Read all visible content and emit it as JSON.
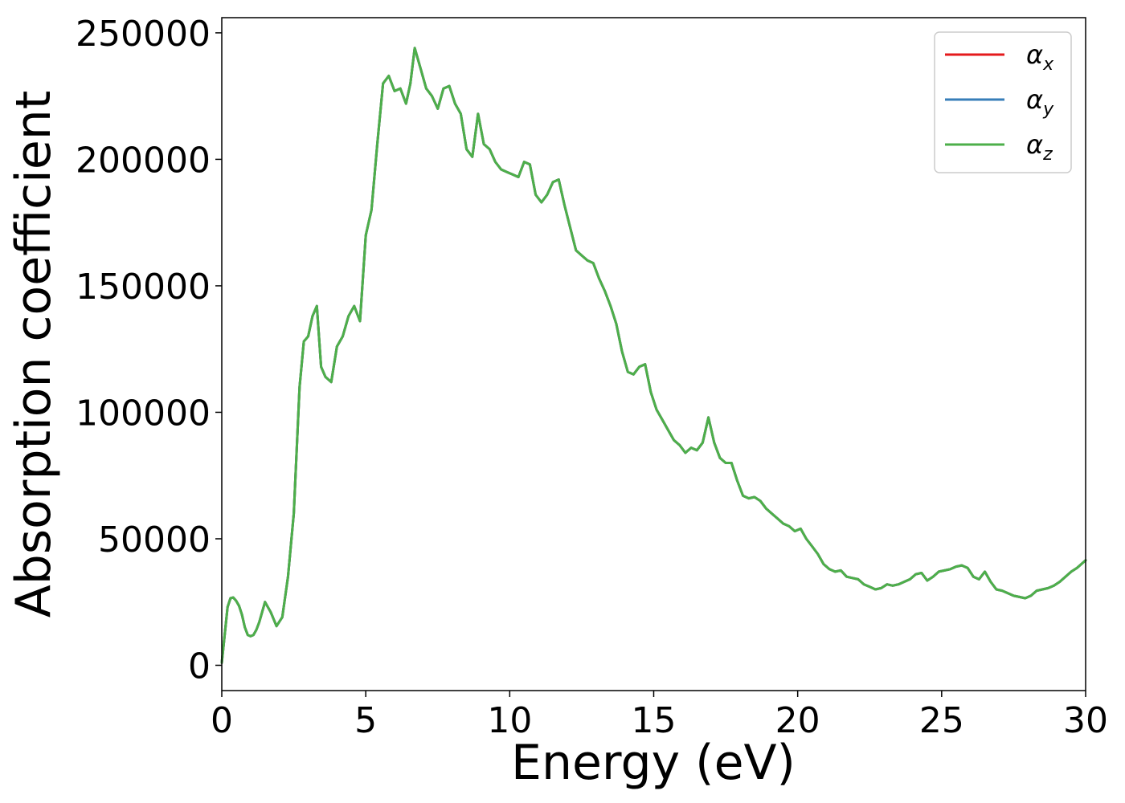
{
  "chart_data": {
    "type": "line",
    "xlabel": "Energy (eV)",
    "ylabel": "Absorption coefficient",
    "xlim": [
      0,
      30
    ],
    "ylim": [
      -10000,
      256000
    ],
    "xticks": [
      0,
      5,
      10,
      15,
      20,
      25,
      30
    ],
    "yticks": [
      0,
      50000,
      100000,
      150000,
      200000,
      250000
    ],
    "grid": false,
    "legend_position": "top-right",
    "series": [
      {
        "name": "αx",
        "symbol": "α",
        "subscript": "x",
        "color": "#e41a1c",
        "x": [
          0,
          0.1,
          0.2,
          0.3,
          0.4,
          0.5,
          0.6,
          0.7,
          0.8,
          0.9,
          1.0,
          1.1,
          1.2,
          1.3,
          1.5,
          1.7,
          1.9,
          2.1,
          2.3,
          2.5,
          2.7,
          2.85,
          3.0,
          3.15,
          3.3,
          3.45,
          3.6,
          3.8,
          4.0,
          4.2,
          4.4,
          4.6,
          4.8,
          5.0,
          5.2,
          5.4,
          5.6,
          5.8,
          6.0,
          6.2,
          6.4,
          6.55,
          6.7,
          6.9,
          7.1,
          7.3,
          7.5,
          7.7,
          7.9,
          8.1,
          8.3,
          8.5,
          8.7,
          8.9,
          9.1,
          9.3,
          9.5,
          9.7,
          9.9,
          10.1,
          10.3,
          10.5,
          10.7,
          10.9,
          11.1,
          11.3,
          11.5,
          11.7,
          11.9,
          12.1,
          12.3,
          12.5,
          12.7,
          12.9,
          13.1,
          13.3,
          13.5,
          13.7,
          13.9,
          14.1,
          14.3,
          14.5,
          14.7,
          14.9,
          15.1,
          15.3,
          15.5,
          15.7,
          15.9,
          16.1,
          16.3,
          16.5,
          16.7,
          16.9,
          17.1,
          17.3,
          17.5,
          17.7,
          17.9,
          18.1,
          18.3,
          18.5,
          18.7,
          18.9,
          19.1,
          19.3,
          19.5,
          19.7,
          19.9,
          20.1,
          20.3,
          20.5,
          20.7,
          20.9,
          21.1,
          21.3,
          21.5,
          21.7,
          21.9,
          22.1,
          22.3,
          22.5,
          22.7,
          22.9,
          23.1,
          23.3,
          23.5,
          23.7,
          23.9,
          24.1,
          24.3,
          24.5,
          24.7,
          24.9,
          25.1,
          25.3,
          25.5,
          25.7,
          25.9,
          26.1,
          26.3,
          26.5,
          26.7,
          26.9,
          27.1,
          27.3,
          27.5,
          27.7,
          27.9,
          28.1,
          28.3,
          28.5,
          28.7,
          28.9,
          29.1,
          29.3,
          29.5,
          29.7,
          30.0
        ],
        "y": [
          1000,
          12000,
          23000,
          26500,
          26800,
          25500,
          23500,
          20000,
          15000,
          12000,
          11500,
          12000,
          14000,
          17000,
          25000,
          21000,
          15500,
          19000,
          35000,
          60000,
          110000,
          128000,
          130000,
          138000,
          142000,
          118000,
          114000,
          112000,
          126000,
          130000,
          138000,
          142000,
          136000,
          170000,
          180000,
          206000,
          230000,
          233000,
          227000,
          228000,
          222000,
          230000,
          244000,
          236000,
          228000,
          225000,
          220000,
          228000,
          229000,
          222000,
          218000,
          204000,
          201000,
          218000,
          206000,
          204000,
          199000,
          196000,
          195000,
          194000,
          193000,
          199000,
          198000,
          186000,
          183000,
          186000,
          191000,
          192000,
          182000,
          173000,
          164000,
          162000,
          160000,
          159000,
          153000,
          148000,
          142000,
          135000,
          124000,
          116000,
          115000,
          118000,
          119000,
          108000,
          101000,
          97000,
          93000,
          89000,
          87000,
          84000,
          86000,
          85000,
          88000,
          98000,
          88000,
          82000,
          80000,
          80000,
          73000,
          67000,
          66000,
          66500,
          65000,
          62000,
          60000,
          58000,
          56000,
          55000,
          53000,
          54000,
          50000,
          47000,
          44000,
          40000,
          38000,
          37000,
          37500,
          35000,
          34500,
          34000,
          32000,
          31000,
          30000,
          30500,
          32000,
          31500,
          32000,
          33000,
          34000,
          36000,
          36500,
          33500,
          35000,
          37000,
          37500,
          38000,
          39000,
          39500,
          38500,
          35000,
          34000,
          37000,
          33000,
          30000,
          29500,
          28500,
          27500,
          27000,
          26500,
          27500,
          29500,
          30000,
          30500,
          31500,
          33000,
          35000,
          37000,
          38500,
          41500
        ]
      },
      {
        "name": "αy",
        "symbol": "α",
        "subscript": "y",
        "color": "#377eb8",
        "x": [
          0,
          0.1,
          0.2,
          0.3,
          0.4,
          0.5,
          0.6,
          0.7,
          0.8,
          0.9,
          1.0,
          1.1,
          1.2,
          1.3,
          1.5,
          1.7,
          1.9,
          2.1,
          2.3,
          2.5,
          2.7,
          2.85,
          3.0,
          3.15,
          3.3,
          3.45,
          3.6,
          3.8,
          4.0,
          4.2,
          4.4,
          4.6,
          4.8,
          5.0,
          5.2,
          5.4,
          5.6,
          5.8,
          6.0,
          6.2,
          6.4,
          6.55,
          6.7,
          6.9,
          7.1,
          7.3,
          7.5,
          7.7,
          7.9,
          8.1,
          8.3,
          8.5,
          8.7,
          8.9,
          9.1,
          9.3,
          9.5,
          9.7,
          9.9,
          10.1,
          10.3,
          10.5,
          10.7,
          10.9,
          11.1,
          11.3,
          11.5,
          11.7,
          11.9,
          12.1,
          12.3,
          12.5,
          12.7,
          12.9,
          13.1,
          13.3,
          13.5,
          13.7,
          13.9,
          14.1,
          14.3,
          14.5,
          14.7,
          14.9,
          15.1,
          15.3,
          15.5,
          15.7,
          15.9,
          16.1,
          16.3,
          16.5,
          16.7,
          16.9,
          17.1,
          17.3,
          17.5,
          17.7,
          17.9,
          18.1,
          18.3,
          18.5,
          18.7,
          18.9,
          19.1,
          19.3,
          19.5,
          19.7,
          19.9,
          20.1,
          20.3,
          20.5,
          20.7,
          20.9,
          21.1,
          21.3,
          21.5,
          21.7,
          21.9,
          22.1,
          22.3,
          22.5,
          22.7,
          22.9,
          23.1,
          23.3,
          23.5,
          23.7,
          23.9,
          24.1,
          24.3,
          24.5,
          24.7,
          24.9,
          25.1,
          25.3,
          25.5,
          25.7,
          25.9,
          26.1,
          26.3,
          26.5,
          26.7,
          26.9,
          27.1,
          27.3,
          27.5,
          27.7,
          27.9,
          28.1,
          28.3,
          28.5,
          28.7,
          28.9,
          29.1,
          29.3,
          29.5,
          29.7,
          30.0
        ],
        "y": [
          1000,
          12000,
          23000,
          26500,
          26800,
          25500,
          23500,
          20000,
          15000,
          12000,
          11500,
          12000,
          14000,
          17000,
          25000,
          21000,
          15500,
          19000,
          35000,
          60000,
          110000,
          128000,
          130000,
          138000,
          142000,
          118000,
          114000,
          112000,
          126000,
          130000,
          138000,
          142000,
          136000,
          170000,
          180000,
          206000,
          230000,
          233000,
          227000,
          228000,
          222000,
          230000,
          244000,
          236000,
          228000,
          225000,
          220000,
          228000,
          229000,
          222000,
          218000,
          204000,
          201000,
          218000,
          206000,
          204000,
          199000,
          196000,
          195000,
          194000,
          193000,
          199000,
          198000,
          186000,
          183000,
          186000,
          191000,
          192000,
          182000,
          173000,
          164000,
          162000,
          160000,
          159000,
          153000,
          148000,
          142000,
          135000,
          124000,
          116000,
          115000,
          118000,
          119000,
          108000,
          101000,
          97000,
          93000,
          89000,
          87000,
          84000,
          86000,
          85000,
          88000,
          98000,
          88000,
          82000,
          80000,
          80000,
          73000,
          67000,
          66000,
          66500,
          65000,
          62000,
          60000,
          58000,
          56000,
          55000,
          53000,
          54000,
          50000,
          47000,
          44000,
          40000,
          38000,
          37000,
          37500,
          35000,
          34500,
          34000,
          32000,
          31000,
          30000,
          30500,
          32000,
          31500,
          32000,
          33000,
          34000,
          36000,
          36500,
          33500,
          35000,
          37000,
          37500,
          38000,
          39000,
          39500,
          38500,
          35000,
          34000,
          37000,
          33000,
          30000,
          29500,
          28500,
          27500,
          27000,
          26500,
          27500,
          29500,
          30000,
          30500,
          31500,
          33000,
          35000,
          37000,
          38500,
          41500
        ]
      },
      {
        "name": "αz",
        "symbol": "α",
        "subscript": "z",
        "color": "#4daf4a",
        "x": [
          0,
          0.1,
          0.2,
          0.3,
          0.4,
          0.5,
          0.6,
          0.7,
          0.8,
          0.9,
          1.0,
          1.1,
          1.2,
          1.3,
          1.5,
          1.7,
          1.9,
          2.1,
          2.3,
          2.5,
          2.7,
          2.85,
          3.0,
          3.15,
          3.3,
          3.45,
          3.6,
          3.8,
          4.0,
          4.2,
          4.4,
          4.6,
          4.8,
          5.0,
          5.2,
          5.4,
          5.6,
          5.8,
          6.0,
          6.2,
          6.4,
          6.55,
          6.7,
          6.9,
          7.1,
          7.3,
          7.5,
          7.7,
          7.9,
          8.1,
          8.3,
          8.5,
          8.7,
          8.9,
          9.1,
          9.3,
          9.5,
          9.7,
          9.9,
          10.1,
          10.3,
          10.5,
          10.7,
          10.9,
          11.1,
          11.3,
          11.5,
          11.7,
          11.9,
          12.1,
          12.3,
          12.5,
          12.7,
          12.9,
          13.1,
          13.3,
          13.5,
          13.7,
          13.9,
          14.1,
          14.3,
          14.5,
          14.7,
          14.9,
          15.1,
          15.3,
          15.5,
          15.7,
          15.9,
          16.1,
          16.3,
          16.5,
          16.7,
          16.9,
          17.1,
          17.3,
          17.5,
          17.7,
          17.9,
          18.1,
          18.3,
          18.5,
          18.7,
          18.9,
          19.1,
          19.3,
          19.5,
          19.7,
          19.9,
          20.1,
          20.3,
          20.5,
          20.7,
          20.9,
          21.1,
          21.3,
          21.5,
          21.7,
          21.9,
          22.1,
          22.3,
          22.5,
          22.7,
          22.9,
          23.1,
          23.3,
          23.5,
          23.7,
          23.9,
          24.1,
          24.3,
          24.5,
          24.7,
          24.9,
          25.1,
          25.3,
          25.5,
          25.7,
          25.9,
          26.1,
          26.3,
          26.5,
          26.7,
          26.9,
          27.1,
          27.3,
          27.5,
          27.7,
          27.9,
          28.1,
          28.3,
          28.5,
          28.7,
          28.9,
          29.1,
          29.3,
          29.5,
          29.7,
          30.0
        ],
        "y": [
          1000,
          12000,
          23000,
          26500,
          26800,
          25500,
          23500,
          20000,
          15000,
          12000,
          11500,
          12000,
          14000,
          17000,
          25000,
          21000,
          15500,
          19000,
          35000,
          60000,
          110000,
          128000,
          130000,
          138000,
          142000,
          118000,
          114000,
          112000,
          126000,
          130000,
          138000,
          142000,
          136000,
          170000,
          180000,
          206000,
          230000,
          233000,
          227000,
          228000,
          222000,
          230000,
          244000,
          236000,
          228000,
          225000,
          220000,
          228000,
          229000,
          222000,
          218000,
          204000,
          201000,
          218000,
          206000,
          204000,
          199000,
          196000,
          195000,
          194000,
          193000,
          199000,
          198000,
          186000,
          183000,
          186000,
          191000,
          192000,
          182000,
          173000,
          164000,
          162000,
          160000,
          159000,
          153000,
          148000,
          142000,
          135000,
          124000,
          116000,
          115000,
          118000,
          119000,
          108000,
          101000,
          97000,
          93000,
          89000,
          87000,
          84000,
          86000,
          85000,
          88000,
          98000,
          88000,
          82000,
          80000,
          80000,
          73000,
          67000,
          66000,
          66500,
          65000,
          62000,
          60000,
          58000,
          56000,
          55000,
          53000,
          54000,
          50000,
          47000,
          44000,
          40000,
          38000,
          37000,
          37500,
          35000,
          34500,
          34000,
          32000,
          31000,
          30000,
          30500,
          32000,
          31500,
          32000,
          33000,
          34000,
          36000,
          36500,
          33500,
          35000,
          37000,
          37500,
          38000,
          39000,
          39500,
          38500,
          35000,
          34000,
          37000,
          33000,
          30000,
          29500,
          28500,
          27500,
          27000,
          26500,
          27500,
          29500,
          30000,
          30500,
          31500,
          33000,
          35000,
          37000,
          38500,
          41500
        ]
      }
    ]
  }
}
